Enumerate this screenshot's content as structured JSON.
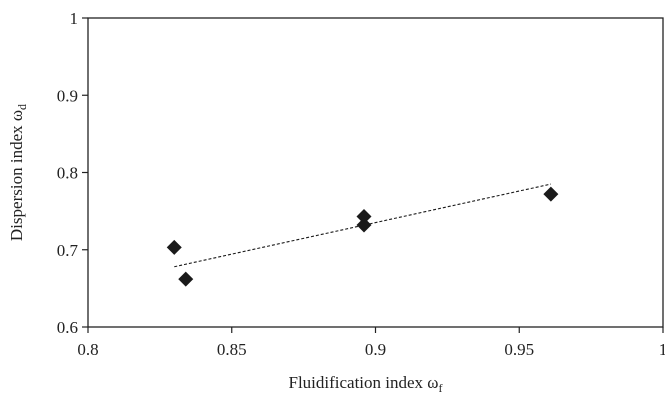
{
  "chart_data": {
    "type": "scatter",
    "xlabel": "Fluidification index ω",
    "xlabel_subscript": "f",
    "ylabel": "Dispersion index ω",
    "ylabel_subscript": "d",
    "xlim": [
      0.8,
      1
    ],
    "ylim": [
      0.6,
      1
    ],
    "x_ticks": [
      0.8,
      0.85,
      0.9,
      0.95,
      1
    ],
    "x_tick_labels": [
      "0.8",
      "0.85",
      "0.9",
      "0.95",
      "1"
    ],
    "y_ticks": [
      0.6,
      0.7,
      0.8,
      0.9,
      1
    ],
    "y_tick_labels": [
      "0.6",
      "0.7",
      "0.8",
      "0.9",
      "1"
    ],
    "grid": false,
    "legend": "none",
    "marker": "diamond",
    "marker_color": "#1a1a1a",
    "points": [
      {
        "x": 0.83,
        "y": 0.703
      },
      {
        "x": 0.834,
        "y": 0.662
      },
      {
        "x": 0.896,
        "y": 0.743
      },
      {
        "x": 0.896,
        "y": 0.732
      },
      {
        "x": 0.961,
        "y": 0.772
      }
    ],
    "trendline": {
      "style": "dashed",
      "color": "#1a1a1a",
      "from": {
        "x": 0.83,
        "y": 0.678
      },
      "to": {
        "x": 0.961,
        "y": 0.785
      }
    }
  }
}
